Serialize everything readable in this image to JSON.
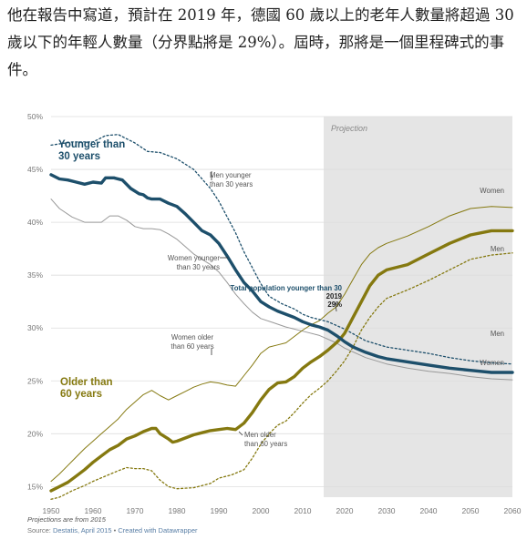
{
  "article": {
    "text": "他在報告中寫道，預計在 2019 年，德國 60 歲以上的老年人數量將超過 30 歲以下的年輕人數量（分界點將是 29%）。屆時，那將是一個里程碑式的事件。"
  },
  "chart_data": {
    "type": "line",
    "title": "",
    "xlabel": "",
    "ylabel": "",
    "xlim": [
      1950,
      2060
    ],
    "ylim": [
      14,
      50
    ],
    "x_ticks": [
      1950,
      1960,
      1970,
      1980,
      1990,
      2000,
      2010,
      2020,
      2030,
      2040,
      2050,
      2060
    ],
    "y_ticks": [
      15,
      20,
      25,
      30,
      35,
      40,
      45,
      50
    ],
    "y_tick_labels": [
      "15%",
      "20%",
      "25%",
      "30%",
      "35%",
      "40%",
      "45%",
      "50%"
    ],
    "grid": true,
    "projection": {
      "start": 2015,
      "end": 2060,
      "label": "Projection"
    },
    "colors": {
      "young": "#1d4f6b",
      "old": "#857910",
      "women": "#999999",
      "projection_bg": "#e5e5e5"
    },
    "series": [
      {
        "name": "Younger than 30 years",
        "style": "thick",
        "color": "#1d4f6b",
        "points": [
          [
            1950,
            44.5
          ],
          [
            1952,
            44.1
          ],
          [
            1954,
            44.0
          ],
          [
            1956,
            43.8
          ],
          [
            1958,
            43.6
          ],
          [
            1960,
            43.8
          ],
          [
            1962,
            43.7
          ],
          [
            1963,
            44.2
          ],
          [
            1965,
            44.2
          ],
          [
            1967,
            44.0
          ],
          [
            1969,
            43.2
          ],
          [
            1971,
            42.7
          ],
          [
            1972,
            42.6
          ],
          [
            1973,
            42.3
          ],
          [
            1974,
            42.2
          ],
          [
            1976,
            42.2
          ],
          [
            1978,
            41.8
          ],
          [
            1980,
            41.5
          ],
          [
            1982,
            40.8
          ],
          [
            1984,
            40.0
          ],
          [
            1986,
            39.2
          ],
          [
            1988,
            38.8
          ],
          [
            1990,
            38.0
          ],
          [
            1992,
            36.8
          ],
          [
            1994,
            35.5
          ],
          [
            1996,
            34.3
          ],
          [
            1998,
            33.5
          ],
          [
            2000,
            32.5
          ],
          [
            2002,
            32.0
          ],
          [
            2004,
            31.6
          ],
          [
            2006,
            31.3
          ],
          [
            2008,
            31.0
          ],
          [
            2010,
            30.6
          ],
          [
            2012,
            30.3
          ],
          [
            2014,
            30.1
          ],
          [
            2016,
            29.8
          ],
          [
            2018,
            29.3
          ],
          [
            2019,
            29.0
          ],
          [
            2020,
            28.7
          ],
          [
            2022,
            28.2
          ],
          [
            2025,
            27.7
          ],
          [
            2028,
            27.3
          ],
          [
            2030,
            27.1
          ],
          [
            2035,
            26.8
          ],
          [
            2040,
            26.5
          ],
          [
            2045,
            26.2
          ],
          [
            2050,
            26.0
          ],
          [
            2055,
            25.8
          ],
          [
            2060,
            25.8
          ]
        ]
      },
      {
        "name": "Older than 60 years",
        "style": "thick",
        "color": "#857910",
        "points": [
          [
            1950,
            14.6
          ],
          [
            1952,
            15.0
          ],
          [
            1954,
            15.4
          ],
          [
            1956,
            16.0
          ],
          [
            1958,
            16.6
          ],
          [
            1960,
            17.3
          ],
          [
            1962,
            17.9
          ],
          [
            1964,
            18.5
          ],
          [
            1966,
            18.9
          ],
          [
            1968,
            19.5
          ],
          [
            1970,
            19.8
          ],
          [
            1972,
            20.2
          ],
          [
            1974,
            20.5
          ],
          [
            1975,
            20.5
          ],
          [
            1976,
            20.0
          ],
          [
            1978,
            19.5
          ],
          [
            1979,
            19.2
          ],
          [
            1980,
            19.3
          ],
          [
            1982,
            19.6
          ],
          [
            1984,
            19.9
          ],
          [
            1986,
            20.1
          ],
          [
            1988,
            20.3
          ],
          [
            1990,
            20.4
          ],
          [
            1992,
            20.5
          ],
          [
            1994,
            20.4
          ],
          [
            1996,
            21.0
          ],
          [
            1998,
            22.0
          ],
          [
            2000,
            23.2
          ],
          [
            2002,
            24.2
          ],
          [
            2004,
            24.8
          ],
          [
            2006,
            24.9
          ],
          [
            2008,
            25.4
          ],
          [
            2010,
            26.2
          ],
          [
            2012,
            26.8
          ],
          [
            2014,
            27.3
          ],
          [
            2016,
            27.9
          ],
          [
            2018,
            28.6
          ],
          [
            2019,
            29.0
          ],
          [
            2020,
            29.5
          ],
          [
            2022,
            31.0
          ],
          [
            2024,
            32.5
          ],
          [
            2026,
            34.0
          ],
          [
            2028,
            35.0
          ],
          [
            2030,
            35.5
          ],
          [
            2035,
            36.0
          ],
          [
            2040,
            37.0
          ],
          [
            2045,
            38.0
          ],
          [
            2050,
            38.8
          ],
          [
            2055,
            39.2
          ],
          [
            2060,
            39.2
          ]
        ]
      },
      {
        "name": "Men younger than 30 years",
        "style": "dotted",
        "color": "#1d4f6b",
        "points": [
          [
            1950,
            47.3
          ],
          [
            1955,
            47.6
          ],
          [
            1960,
            47.6
          ],
          [
            1963,
            48.2
          ],
          [
            1966,
            48.3
          ],
          [
            1970,
            47.5
          ],
          [
            1973,
            46.7
          ],
          [
            1976,
            46.6
          ],
          [
            1980,
            46.0
          ],
          [
            1984,
            45.0
          ],
          [
            1988,
            43.2
          ],
          [
            1990,
            42.0
          ],
          [
            1992,
            40.5
          ],
          [
            1994,
            39.0
          ],
          [
            1996,
            37.2
          ],
          [
            1998,
            35.7
          ],
          [
            2000,
            34.2
          ],
          [
            2002,
            33.0
          ],
          [
            2005,
            32.3
          ],
          [
            2008,
            31.8
          ],
          [
            2010,
            31.3
          ],
          [
            2012,
            31.0
          ],
          [
            2014,
            30.8
          ],
          [
            2016,
            30.6
          ],
          [
            2020,
            29.9
          ],
          [
            2025,
            28.8
          ],
          [
            2030,
            28.2
          ],
          [
            2035,
            27.9
          ],
          [
            2040,
            27.6
          ],
          [
            2045,
            27.2
          ],
          [
            2050,
            26.9
          ],
          [
            2055,
            26.7
          ],
          [
            2060,
            26.6
          ]
        ]
      },
      {
        "name": "Women younger than 30 years",
        "style": "thin",
        "color": "#999999",
        "points": [
          [
            1950,
            42.2
          ],
          [
            1952,
            41.3
          ],
          [
            1955,
            40.5
          ],
          [
            1958,
            40.0
          ],
          [
            1960,
            40.0
          ],
          [
            1962,
            40.0
          ],
          [
            1964,
            40.6
          ],
          [
            1966,
            40.6
          ],
          [
            1968,
            40.2
          ],
          [
            1970,
            39.6
          ],
          [
            1972,
            39.4
          ],
          [
            1974,
            39.4
          ],
          [
            1976,
            39.3
          ],
          [
            1978,
            38.9
          ],
          [
            1980,
            38.4
          ],
          [
            1982,
            37.7
          ],
          [
            1984,
            37.0
          ],
          [
            1986,
            36.5
          ],
          [
            1988,
            36.0
          ],
          [
            1990,
            35.3
          ],
          [
            1992,
            34.3
          ],
          [
            1994,
            33.2
          ],
          [
            1996,
            32.3
          ],
          [
            1998,
            31.5
          ],
          [
            2000,
            30.9
          ],
          [
            2003,
            30.5
          ],
          [
            2006,
            30.1
          ],
          [
            2010,
            29.7
          ],
          [
            2014,
            29.3
          ],
          [
            2018,
            28.6
          ],
          [
            2020,
            28.1
          ],
          [
            2025,
            27.2
          ],
          [
            2030,
            26.6
          ],
          [
            2035,
            26.2
          ],
          [
            2040,
            25.9
          ],
          [
            2045,
            25.7
          ],
          [
            2050,
            25.4
          ],
          [
            2055,
            25.2
          ],
          [
            2060,
            25.1
          ]
        ]
      },
      {
        "name": "Women older than 60 years",
        "style": "thin",
        "color": "#857910",
        "points": [
          [
            1950,
            15.5
          ],
          [
            1952,
            16.2
          ],
          [
            1954,
            17.0
          ],
          [
            1956,
            17.8
          ],
          [
            1958,
            18.6
          ],
          [
            1960,
            19.3
          ],
          [
            1962,
            20.0
          ],
          [
            1964,
            20.7
          ],
          [
            1966,
            21.4
          ],
          [
            1968,
            22.3
          ],
          [
            1970,
            23.0
          ],
          [
            1972,
            23.7
          ],
          [
            1974,
            24.1
          ],
          [
            1976,
            23.6
          ],
          [
            1978,
            23.2
          ],
          [
            1980,
            23.6
          ],
          [
            1982,
            24.0
          ],
          [
            1984,
            24.4
          ],
          [
            1986,
            24.7
          ],
          [
            1988,
            24.9
          ],
          [
            1990,
            24.8
          ],
          [
            1992,
            24.6
          ],
          [
            1994,
            24.5
          ],
          [
            1996,
            25.5
          ],
          [
            1998,
            26.5
          ],
          [
            2000,
            27.6
          ],
          [
            2002,
            28.2
          ],
          [
            2004,
            28.4
          ],
          [
            2006,
            28.6
          ],
          [
            2008,
            29.2
          ],
          [
            2010,
            29.8
          ],
          [
            2012,
            30.3
          ],
          [
            2014,
            30.7
          ],
          [
            2016,
            31.4
          ],
          [
            2018,
            32.0
          ],
          [
            2020,
            33.2
          ],
          [
            2022,
            34.6
          ],
          [
            2024,
            36.0
          ],
          [
            2026,
            37.0
          ],
          [
            2028,
            37.6
          ],
          [
            2030,
            38.0
          ],
          [
            2035,
            38.7
          ],
          [
            2040,
            39.6
          ],
          [
            2045,
            40.6
          ],
          [
            2050,
            41.3
          ],
          [
            2055,
            41.5
          ],
          [
            2060,
            41.4
          ]
        ]
      },
      {
        "name": "Men older than 60 years",
        "style": "dotted",
        "color": "#857910",
        "points": [
          [
            1950,
            13.8
          ],
          [
            1952,
            14.0
          ],
          [
            1955,
            14.6
          ],
          [
            1958,
            15.1
          ],
          [
            1960,
            15.5
          ],
          [
            1963,
            16.0
          ],
          [
            1966,
            16.5
          ],
          [
            1968,
            16.8
          ],
          [
            1970,
            16.7
          ],
          [
            1972,
            16.7
          ],
          [
            1974,
            16.5
          ],
          [
            1976,
            15.6
          ],
          [
            1978,
            15.0
          ],
          [
            1980,
            14.8
          ],
          [
            1984,
            14.9
          ],
          [
            1988,
            15.3
          ],
          [
            1990,
            15.8
          ],
          [
            1993,
            16.1
          ],
          [
            1996,
            16.6
          ],
          [
            1998,
            17.7
          ],
          [
            2000,
            19.0
          ],
          [
            2002,
            20.0
          ],
          [
            2004,
            20.8
          ],
          [
            2006,
            21.2
          ],
          [
            2008,
            22.0
          ],
          [
            2010,
            22.9
          ],
          [
            2012,
            23.7
          ],
          [
            2014,
            24.3
          ],
          [
            2016,
            25.0
          ],
          [
            2018,
            25.9
          ],
          [
            2020,
            26.9
          ],
          [
            2022,
            28.2
          ],
          [
            2024,
            29.8
          ],
          [
            2026,
            31.0
          ],
          [
            2028,
            32.0
          ],
          [
            2030,
            32.8
          ],
          [
            2035,
            33.6
          ],
          [
            2040,
            34.5
          ],
          [
            2045,
            35.5
          ],
          [
            2050,
            36.5
          ],
          [
            2055,
            36.9
          ],
          [
            2060,
            37.1
          ]
        ]
      }
    ],
    "annotations": [
      {
        "name": "label-younger-main",
        "lines": [
          "Younger than",
          "30 years"
        ]
      },
      {
        "name": "label-older-main",
        "lines": [
          "Older than",
          "60 years"
        ]
      },
      {
        "name": "label-men-younger",
        "lines": [
          "Men younger",
          "than 30 years"
        ]
      },
      {
        "name": "label-women-younger",
        "lines": [
          "Women younger",
          "than 30 years"
        ]
      },
      {
        "name": "label-women-older",
        "lines": [
          "Women older",
          "than 60 years"
        ]
      },
      {
        "name": "label-men-older",
        "lines": [
          "Men older",
          "than 60 years"
        ]
      },
      {
        "name": "label-total-2019",
        "lines": [
          "Total population younger than 30",
          "2019",
          "29%"
        ]
      },
      {
        "name": "label-end-women-top",
        "lines": [
          "Women"
        ]
      },
      {
        "name": "label-end-men-top",
        "lines": [
          "Men"
        ]
      },
      {
        "name": "label-end-men-bottom",
        "lines": [
          "Men"
        ]
      },
      {
        "name": "label-end-women-bottom",
        "lines": [
          "Women"
        ]
      }
    ],
    "footer": {
      "note": "Projections are from 2015",
      "source_prefix": "Source: ",
      "source_link": "Destatis, April 2015",
      "separator": " • ",
      "credit_link": "Created with Datawrapper"
    }
  }
}
